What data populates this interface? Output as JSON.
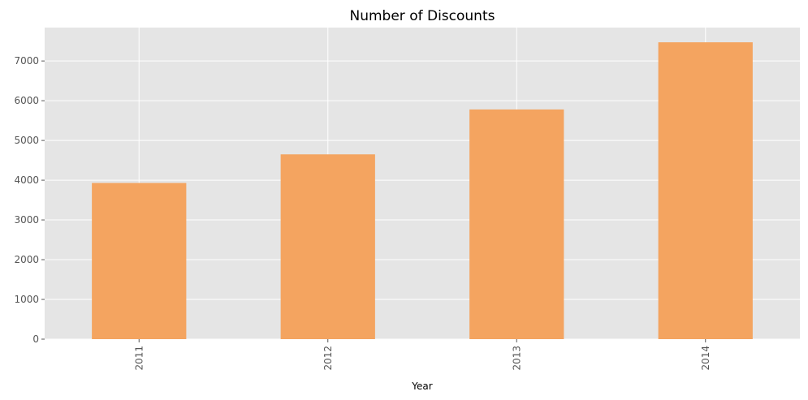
{
  "chart_data": {
    "type": "bar",
    "title": "Number of Discounts",
    "xlabel": "Year",
    "ylabel": "",
    "categories": [
      "2011",
      "2012",
      "2013",
      "2014"
    ],
    "values": [
      3930,
      4650,
      5780,
      7470
    ],
    "ylim": [
      0,
      7840
    ],
    "yticks": [
      0,
      1000,
      2000,
      3000,
      4000,
      5000,
      6000,
      7000
    ],
    "ytick_labels": [
      "0",
      "1000",
      "2000",
      "3000",
      "4000",
      "5000",
      "6000",
      "7000"
    ],
    "grid": true,
    "legend": "none",
    "colors": {
      "bar": "#f4a460",
      "plot_background": "#e5e5e5",
      "grid": "#ffffff",
      "tick_text": "#555555"
    }
  }
}
